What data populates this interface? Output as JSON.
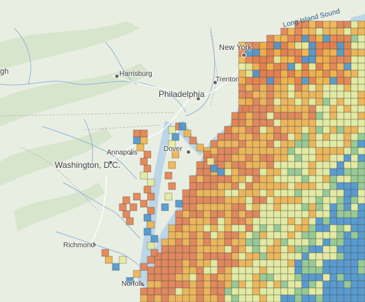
{
  "map": {
    "cities": [
      {
        "name": "New York",
        "key": "new-york"
      },
      {
        "name": "Harrisburg",
        "key": "harrisburg"
      },
      {
        "name": "Trenton",
        "key": "trenton"
      },
      {
        "name": "Philadelphia",
        "key": "philadelphia"
      },
      {
        "name": "Annapolis",
        "key": "annapolis"
      },
      {
        "name": "Dover",
        "key": "dover"
      },
      {
        "name": "Washington, D.C.",
        "key": "washington"
      },
      {
        "name": "Richmond",
        "key": "richmond"
      },
      {
        "name": "Norfolk",
        "key": "norfolk"
      }
    ],
    "water_labels": [
      {
        "name": "Long Island Sound",
        "key": "long-island-sound"
      }
    ],
    "partial_label": "gh",
    "colors": {
      "land": "#e9eee2",
      "water": "#bcd6e8",
      "grid_orange": "#e3804f",
      "grid_amber": "#efb24d",
      "grid_yellow": "#e5ec9c",
      "grid_green": "#91c98d",
      "grid_blue": "#4e95cd",
      "cell_border": "#53534a"
    }
  }
}
